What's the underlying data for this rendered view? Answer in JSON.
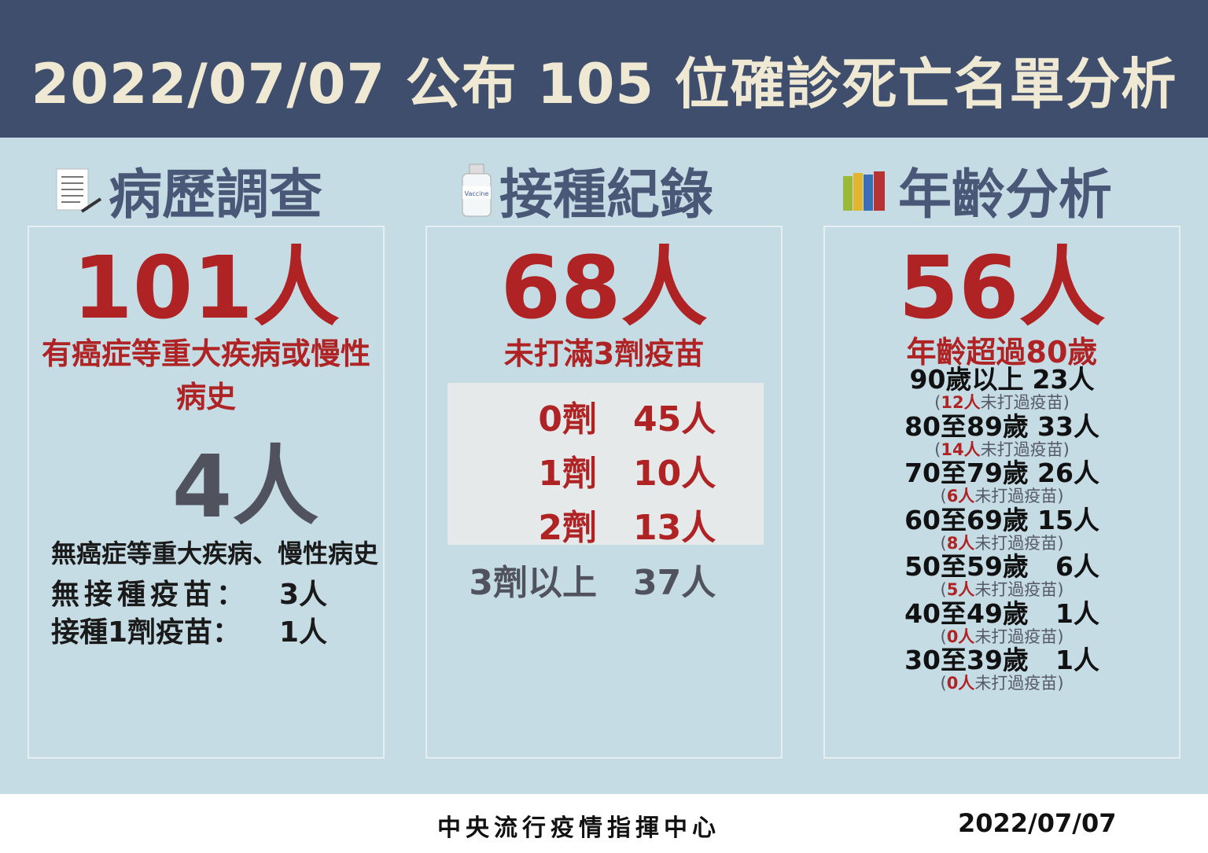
{
  "title": "2022/07/07 公布 105 位確診死亡名單分析",
  "colors": {
    "header": "#3f4e6d",
    "background": "#c6dce4",
    "accent_red": "#b02325",
    "heading": "#4a5878"
  },
  "history": {
    "heading": "病歷調查",
    "icon": "document-pen-icon",
    "count": "101人",
    "count_label": "有癌症等重大疾病或慢性病史",
    "other_count": "4人",
    "other_label": "無癌症等重大疾病、慢性病史",
    "rows": [
      {
        "label": "無接種疫苗：",
        "value": "3人"
      },
      {
        "label": "接種1劑疫苗：",
        "value": "1人"
      }
    ]
  },
  "vaccine": {
    "heading": "接種紀錄",
    "icon": "vaccine-bottle-icon",
    "icon_text": "Vaccine",
    "count": "68人",
    "count_label": "未打滿3劑疫苗",
    "doses": [
      {
        "label": "0劑",
        "value": "45人"
      },
      {
        "label": "1劑",
        "value": "10人"
      },
      {
        "label": "2劑",
        "value": "13人"
      },
      {
        "label": "3劑以上",
        "value": "37人"
      }
    ]
  },
  "age": {
    "heading": "年齡分析",
    "icon": "books-icon",
    "count": "56人",
    "count_label": "年齡超過80歲",
    "groups": [
      {
        "label": "90歲以上",
        "value": "23人",
        "unvaccinated": "12人",
        "note": "未打過疫苗"
      },
      {
        "label": "80至89歲",
        "value": "33人",
        "unvaccinated": "14人",
        "note": "未打過疫苗"
      },
      {
        "label": "70至79歲",
        "value": "26人",
        "unvaccinated": "6人",
        "note": "未打過疫苗"
      },
      {
        "label": "60至69歲",
        "value": "15人",
        "unvaccinated": "8人",
        "note": "未打過疫苗"
      },
      {
        "label": "50至59歲",
        "value": "6人",
        "unvaccinated": "5人",
        "note": "未打過疫苗"
      },
      {
        "label": "40至49歲",
        "value": "1人",
        "unvaccinated": "0人",
        "note": "未打過疫苗"
      },
      {
        "label": "30至39歲",
        "value": "1人",
        "unvaccinated": "0人",
        "note": "未打過疫苗"
      }
    ]
  },
  "footer": {
    "org": "中央流行疫情指揮中心",
    "date": "2022/07/07"
  }
}
